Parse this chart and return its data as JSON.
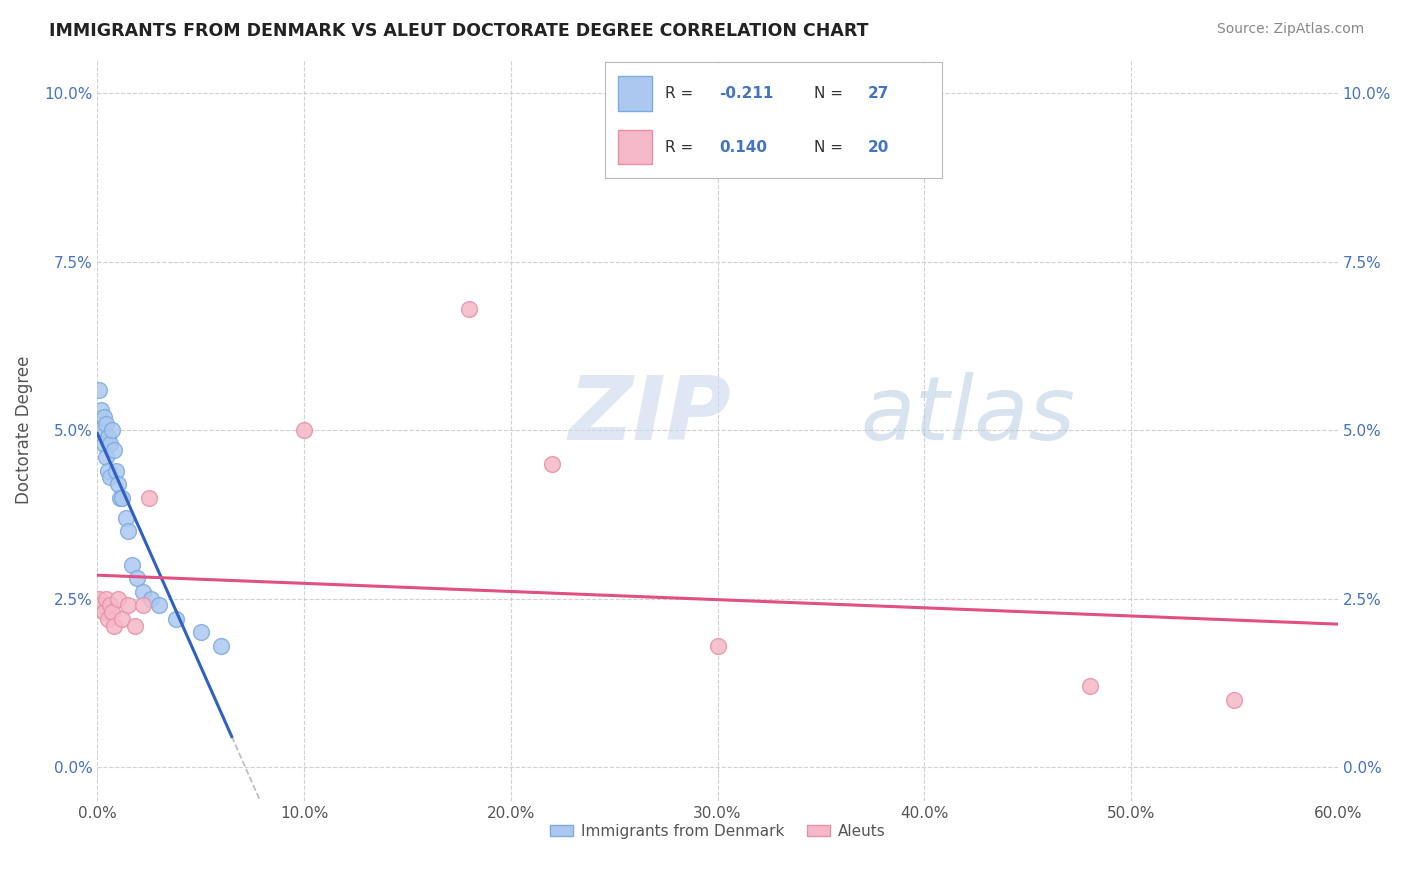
{
  "title": "IMMIGRANTS FROM DENMARK VS ALEUT DOCTORATE DEGREE CORRELATION CHART",
  "source": "Source: ZipAtlas.com",
  "ylabel": "Doctorate Degree",
  "legend_labels": [
    "Immigrants from Denmark",
    "Aleuts"
  ],
  "r_denmark": -0.211,
  "n_denmark": 27,
  "r_aleut": 0.14,
  "n_aleut": 20,
  "xlim": [
    0.0,
    0.6
  ],
  "ylim": [
    -0.005,
    0.105
  ],
  "xticks": [
    0.0,
    0.1,
    0.2,
    0.3,
    0.4,
    0.5,
    0.6
  ],
  "yticks": [
    0.0,
    0.025,
    0.05,
    0.075,
    0.1
  ],
  "color_denmark": "#adc8f0",
  "color_aleut": "#f5b8c8",
  "edge_color_denmark": "#7aaae0",
  "edge_color_aleut": "#e890a8",
  "line_color_denmark": "#3060c0",
  "line_color_aleut": "#e05080",
  "background_color": "#ffffff",
  "denmark_x": [
    0.001,
    0.002,
    0.002,
    0.003,
    0.003,
    0.004,
    0.004,
    0.005,
    0.005,
    0.006,
    0.006,
    0.007,
    0.008,
    0.009,
    0.01,
    0.011,
    0.012,
    0.014,
    0.015,
    0.017,
    0.019,
    0.022,
    0.026,
    0.03,
    0.038,
    0.05,
    0.06
  ],
  "denmark_y": [
    0.056,
    0.053,
    0.05,
    0.052,
    0.048,
    0.051,
    0.046,
    0.049,
    0.044,
    0.048,
    0.043,
    0.05,
    0.047,
    0.044,
    0.042,
    0.04,
    0.04,
    0.037,
    0.035,
    0.03,
    0.028,
    0.026,
    0.025,
    0.024,
    0.022,
    0.02,
    0.018
  ],
  "aleut_x": [
    0.001,
    0.002,
    0.003,
    0.004,
    0.005,
    0.006,
    0.007,
    0.008,
    0.01,
    0.012,
    0.015,
    0.018,
    0.022,
    0.025,
    0.1,
    0.18,
    0.22,
    0.3,
    0.48,
    0.55
  ],
  "aleut_y": [
    0.025,
    0.024,
    0.023,
    0.025,
    0.022,
    0.024,
    0.023,
    0.021,
    0.025,
    0.022,
    0.024,
    0.021,
    0.024,
    0.04,
    0.05,
    0.068,
    0.045,
    0.018,
    0.012,
    0.01
  ],
  "watermark_zip_color": "#c8d8f0",
  "watermark_atlas_color": "#c8d8e8"
}
